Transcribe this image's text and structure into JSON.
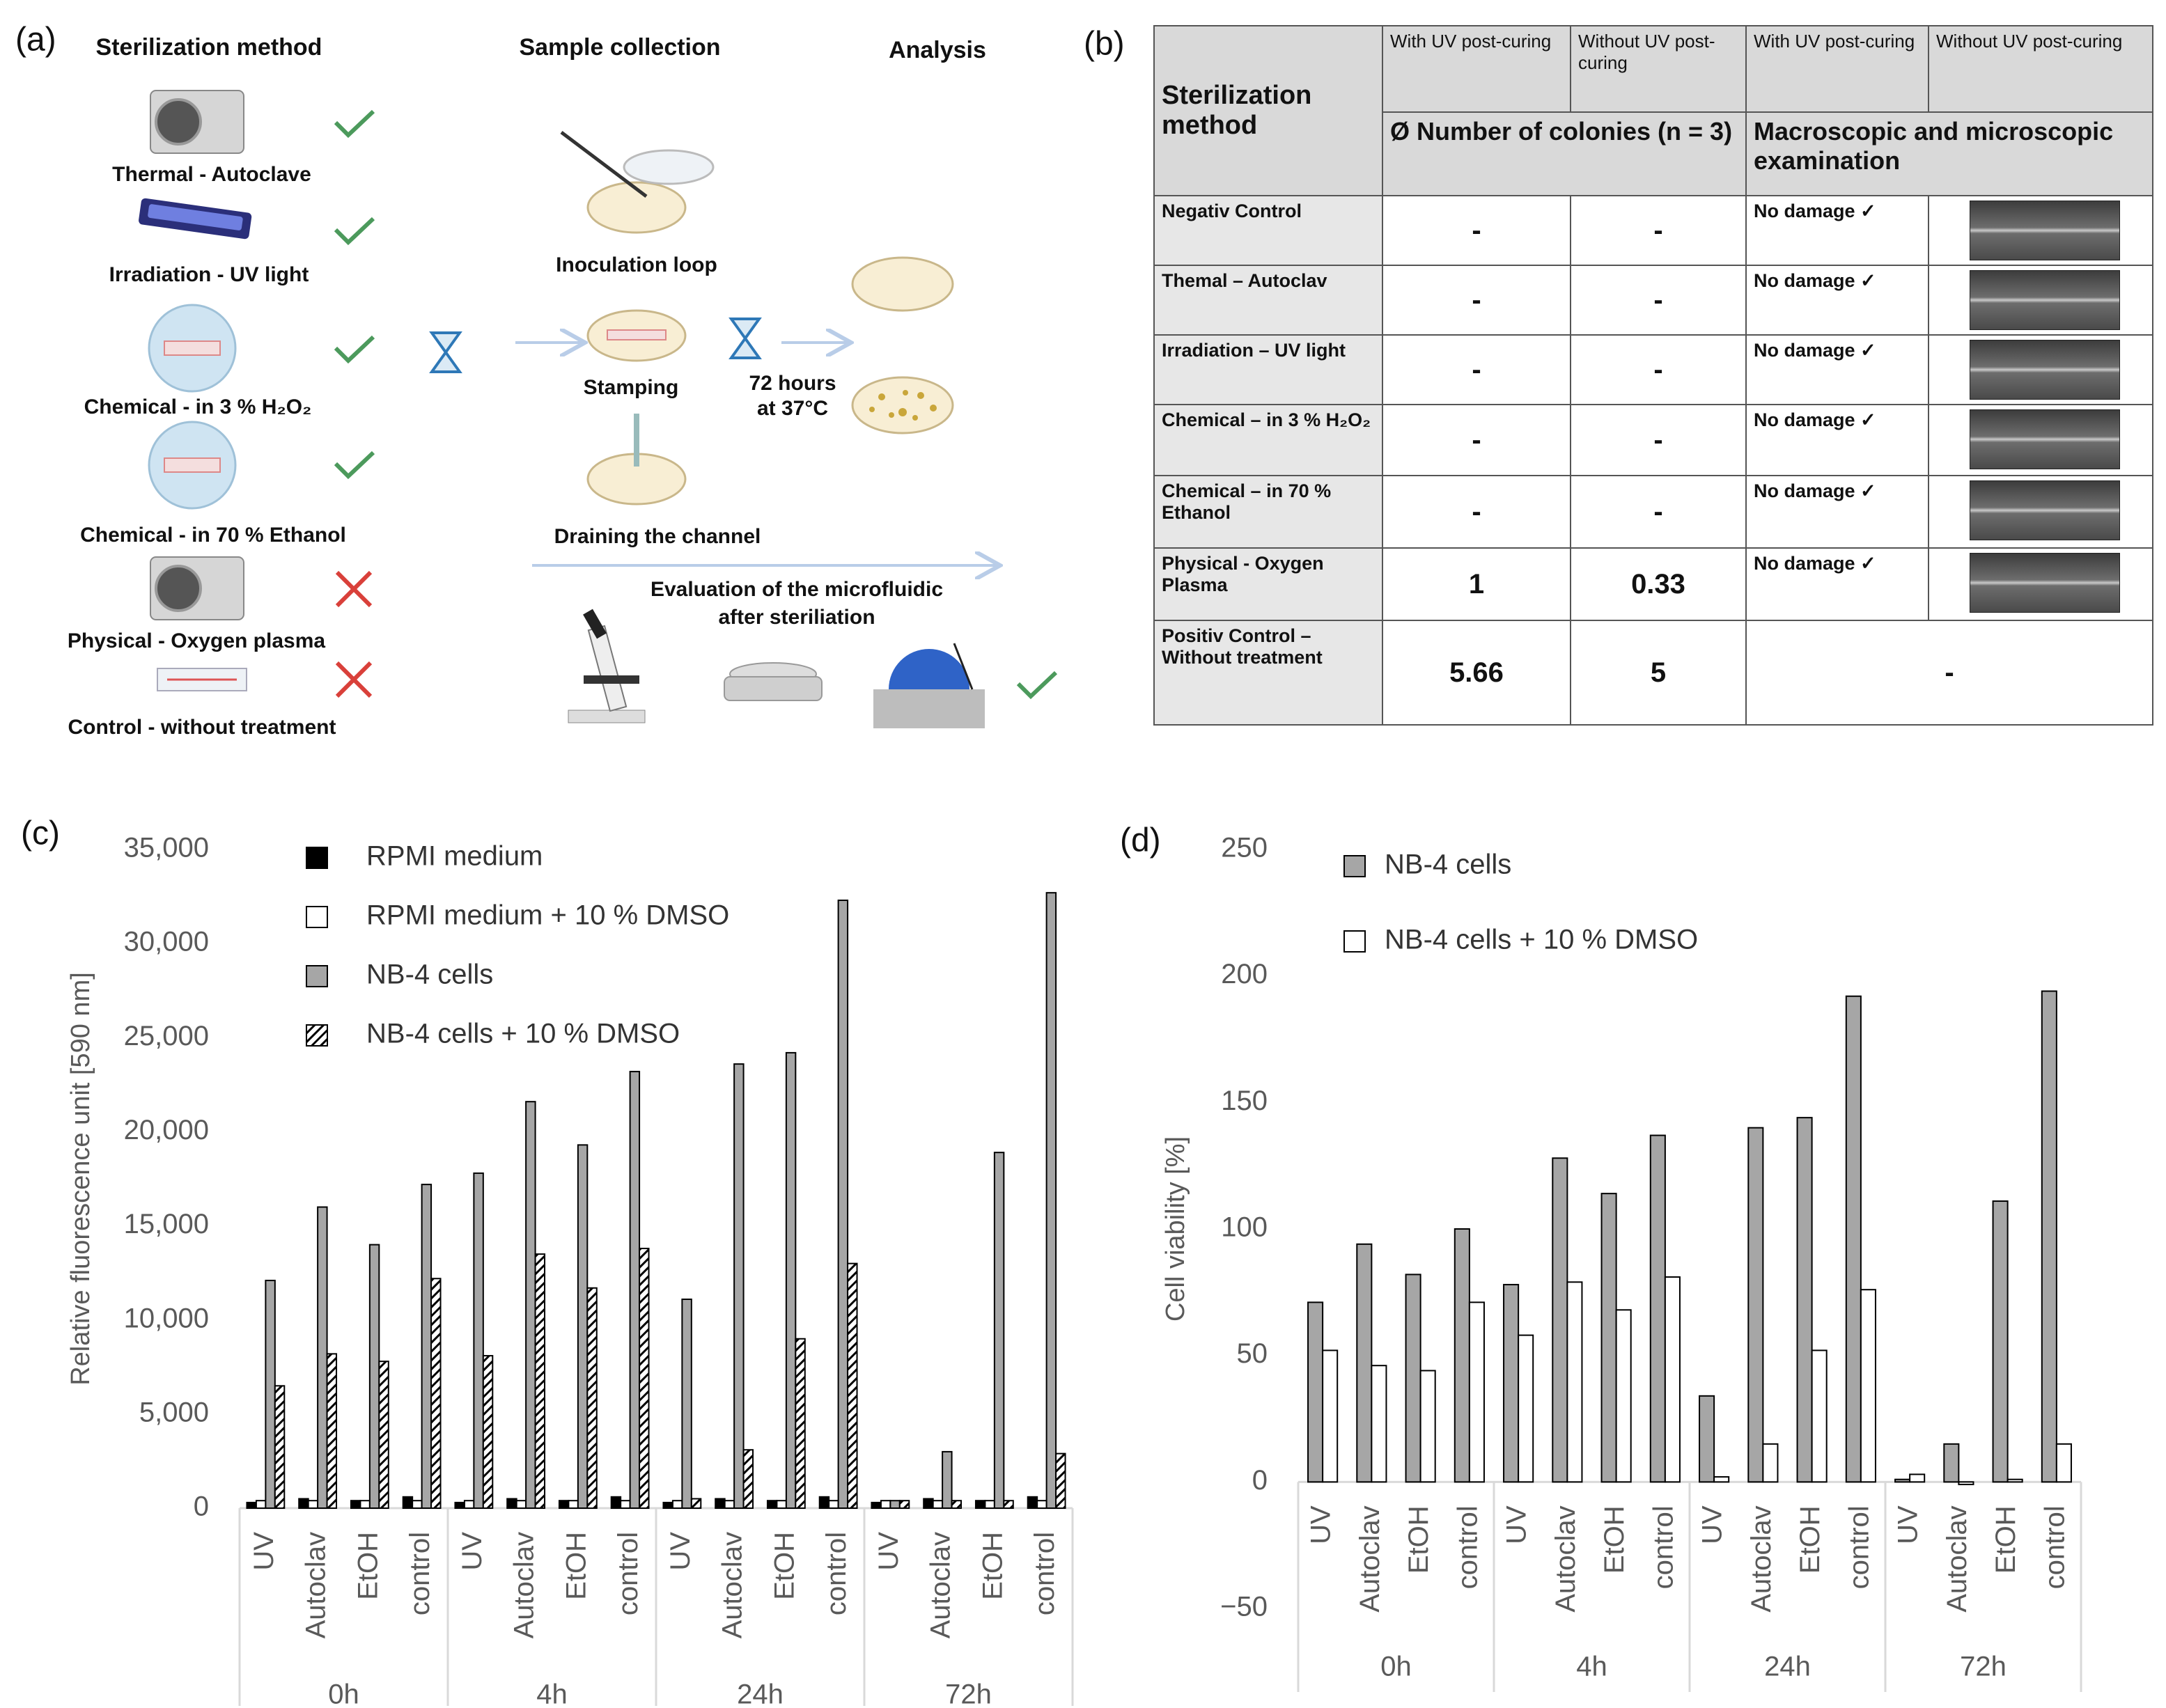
{
  "panel_a": {
    "label": "(a)",
    "headings": [
      "Sterilization method",
      "Sample collection",
      "Analysis"
    ],
    "methods": [
      "Thermal - Autoclave",
      "Irradiation - UV light",
      "Chemical - in 3 % H₂O₂",
      "Chemical - in 70 % Ethanol",
      "Physical - Oxygen plasma",
      "Control - without treatment"
    ],
    "steps": [
      "Inoculation loop",
      "Stamping",
      "Draining the channel"
    ],
    "incubation": [
      "72 hours",
      "at 37°C"
    ],
    "evaluation": [
      "Evaluation of the microfluidic",
      "after steriliation"
    ]
  },
  "panel_b": {
    "label": "(b)",
    "corner": "Sterilization method",
    "subheaders": [
      "With UV post-curing",
      "Without UV post-curing",
      "With UV post-curing",
      "Without UV post-curing"
    ],
    "groups": [
      "Ø Number of colonies (n = 3)",
      "Macroscopic and microscopic examination"
    ],
    "rows": [
      [
        "Negativ Control",
        "-",
        "-",
        "No damage ✓"
      ],
      [
        "Themal – Autoclav",
        "-",
        "-",
        "No damage ✓"
      ],
      [
        "Irradiation – UV light",
        "-",
        "-",
        "No damage ✓"
      ],
      [
        "Chemical – in 3 % H₂O₂",
        "-",
        "-",
        "No damage ✓"
      ],
      [
        "Chemical – in 70 % Ethanol",
        "-",
        "-",
        "No damage ✓"
      ],
      [
        "Physical  - Oxygen Plasma",
        "1",
        "0.33",
        "No damage ✓"
      ],
      [
        "Positiv Control – Without treatment",
        "5.66",
        "5",
        "-"
      ]
    ]
  },
  "chart_data": [
    {
      "type": "bar",
      "panel_label": "(c)",
      "ylabel": "Relative fluorescence unit [590 nm]",
      "categories": [
        "UV",
        "Autoclav",
        "EtOH",
        "control",
        "UV",
        "Autoclav",
        "EtOH",
        "control",
        "UV",
        "Autoclav",
        "EtOH",
        "control",
        "UV",
        "Autoclav",
        "EtOH",
        "control"
      ],
      "groups": [
        "0h",
        "4h",
        "24h",
        "72h"
      ],
      "ylim": [
        0,
        35000
      ],
      "yticks": [
        0,
        {
          "value": 5000,
          "label": "5,000"
        },
        {
          "value": 10000,
          "label": "10,000"
        },
        {
          "value": 15000,
          "label": "15,000"
        },
        {
          "value": 20000,
          "label": "20,000"
        },
        {
          "value": 25000,
          "label": "25,000"
        },
        {
          "value": 30000,
          "label": "30,000"
        },
        {
          "value": 35000,
          "label": "35,000"
        }
      ],
      "grid": false,
      "legend": "upper left",
      "series": [
        {
          "name": "RPMI medium",
          "color": "#000000",
          "values": [
            300,
            500,
            400,
            600,
            300,
            500,
            400,
            600,
            300,
            500,
            400,
            600,
            300,
            500,
            400,
            600
          ]
        },
        {
          "name": "RPMI medium + 10 % DMSO",
          "color": "#ffffff",
          "values": [
            400,
            400,
            400,
            400,
            400,
            400,
            400,
            400,
            400,
            400,
            400,
            400,
            400,
            400,
            400,
            400
          ]
        },
        {
          "name": "NB-4 cells",
          "color": "#a6a6a6",
          "values": [
            12100,
            16000,
            14000,
            17200,
            17800,
            21600,
            19300,
            23200,
            11100,
            23600,
            24200,
            32300,
            400,
            3000,
            18900,
            32700
          ]
        },
        {
          "name": "NB-4 cells + 10 % DMSO",
          "color": "#ffffff",
          "hatch": true,
          "values": [
            6500,
            8200,
            7800,
            12200,
            8100,
            13500,
            11700,
            13800,
            500,
            3100,
            9000,
            13000,
            400,
            400,
            400,
            2900
          ]
        }
      ]
    },
    {
      "type": "bar",
      "panel_label": "(d)",
      "ylabel": "Cell viability [%]",
      "categories": [
        "UV",
        "Autoclav",
        "EtOH",
        "control",
        "UV",
        "Autoclav",
        "EtOH",
        "control",
        "UV",
        "Autoclav",
        "EtOH",
        "control",
        "UV",
        "Autoclav",
        "EtOH",
        "control"
      ],
      "groups": [
        "0h",
        "4h",
        "24h",
        "72h"
      ],
      "ylim": [
        -50,
        250
      ],
      "yticks": [
        {
          "value": -50,
          "label": "−50"
        },
        0,
        50,
        100,
        150,
        200,
        250
      ],
      "grid": false,
      "legend": "upper left",
      "series": [
        {
          "name": "NB-4 cells",
          "color": "#a6a6a6",
          "values": [
            71,
            94,
            82,
            100,
            78,
            128,
            114,
            137,
            34,
            140,
            144,
            192,
            1,
            15,
            111,
            194
          ]
        },
        {
          "name": "NB-4 cells + 10 % DMSO",
          "color": "#ffffff",
          "values": [
            52,
            46,
            44,
            71,
            58,
            79,
            68,
            81,
            2,
            15,
            52,
            76,
            3,
            -1,
            1,
            15
          ]
        }
      ]
    }
  ]
}
